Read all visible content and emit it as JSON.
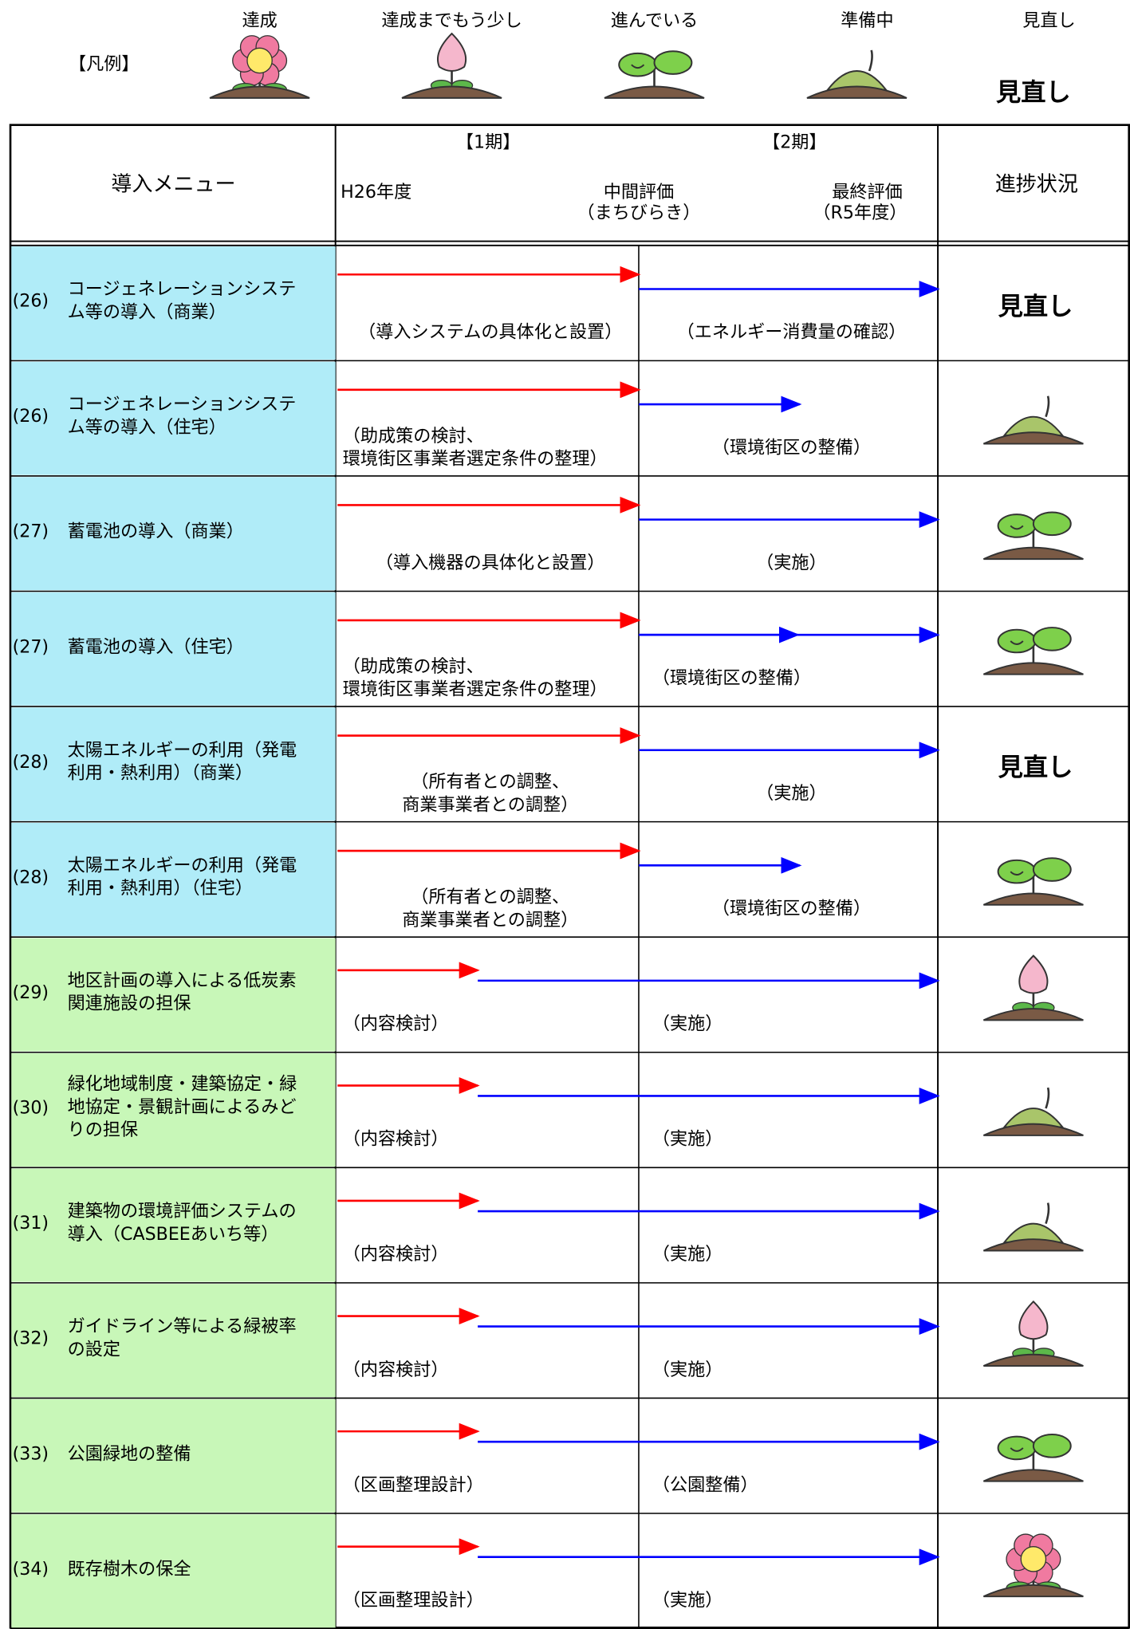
{
  "legend": {
    "label": "【凡例】",
    "items": [
      {
        "caption": "達成"
      },
      {
        "caption": "達成までもう少し"
      },
      {
        "caption": "進んでいる"
      },
      {
        "caption": "準備中"
      },
      {
        "caption": "見直し",
        "symbol": "見直し"
      }
    ]
  },
  "header": {
    "menu": "導入メニュー",
    "phase1": "【1期】",
    "phase2": "【2期】",
    "start": "H26年度",
    "mid": "中間評価",
    "mid_sub": "（まちびらき）",
    "final": "最終評価",
    "final_sub": "（R5年度）",
    "status": "進捗状況"
  },
  "rows": [
    {
      "number": "(26)",
      "name": [
        "コージェネレーションシステ",
        "ム等の導入（商業）"
      ],
      "plan": [
        "（導入システムの具体化と設置）"
      ],
      "action": [
        "（エネルギー消費量の確認）"
      ],
      "status": "見直し"
    },
    {
      "number": "(26)",
      "name": [
        "コージェネレーションシステ",
        "ム等の導入（住宅）"
      ],
      "plan": [
        "（助成策の検討、",
        "環境街区事業者選定条件の整理）"
      ],
      "action": [
        "（環境街区の整備）"
      ]
    },
    {
      "number": "(27)",
      "name": [
        "蓄電池の導入（商業）"
      ],
      "plan": [
        "（導入機器の具体化と設置）"
      ],
      "action": [
        "（実施）"
      ]
    },
    {
      "number": "(27)",
      "name": [
        "蓄電池の導入（住宅）"
      ],
      "plan": [
        "（助成策の検討、",
        "環境街区事業者選定条件の整理）"
      ],
      "action": [
        "（環境街区の整備）"
      ]
    },
    {
      "number": "(28)",
      "name": [
        "太陽エネルギーの利用（発電",
        "利用・熱利用）（商業）"
      ],
      "plan": [
        "（所有者との調整、",
        "商業事業者との調整）"
      ],
      "action": [
        "（実施）"
      ],
      "status": "見直し"
    },
    {
      "number": "(28)",
      "name": [
        "太陽エネルギーの利用（発電",
        "利用・熱利用）（住宅）"
      ],
      "plan": [
        "（所有者との調整、",
        "商業事業者との調整）"
      ],
      "action": [
        "（環境街区の整備）"
      ]
    },
    {
      "number": "(29)",
      "name": [
        "地区計画の導入による低炭素",
        "関連施設の担保"
      ],
      "plan": [
        "（内容検討）"
      ],
      "action": [
        "（実施）"
      ]
    },
    {
      "number": "(30)",
      "name": [
        "緑化地域制度・建築協定・緑",
        "地協定・景観計画によるみど",
        "りの担保"
      ],
      "plan": [
        "（内容検討）"
      ],
      "action": [
        "（実施）"
      ]
    },
    {
      "number": "(31)",
      "name": [
        "建築物の環境評価システムの",
        "導入（CASBEEあいち等）"
      ],
      "plan": [
        "（内容検討）"
      ],
      "action": [
        "（実施）"
      ]
    },
    {
      "number": "(32)",
      "name": [
        "ガイドライン等による緑被率",
        "の設定"
      ],
      "plan": [
        "（内容検討）"
      ],
      "action": [
        "（実施）"
      ]
    },
    {
      "number": "(33)",
      "name": [
        "公園緑地の整備"
      ],
      "plan": [
        "（区画整理設計）"
      ],
      "action": [
        "（公園整備）"
      ]
    },
    {
      "number": "(34)",
      "name": [
        "既存樹木の保全"
      ],
      "plan": [
        "（区画整理設計）"
      ],
      "action": [
        "（実施）"
      ]
    }
  ]
}
